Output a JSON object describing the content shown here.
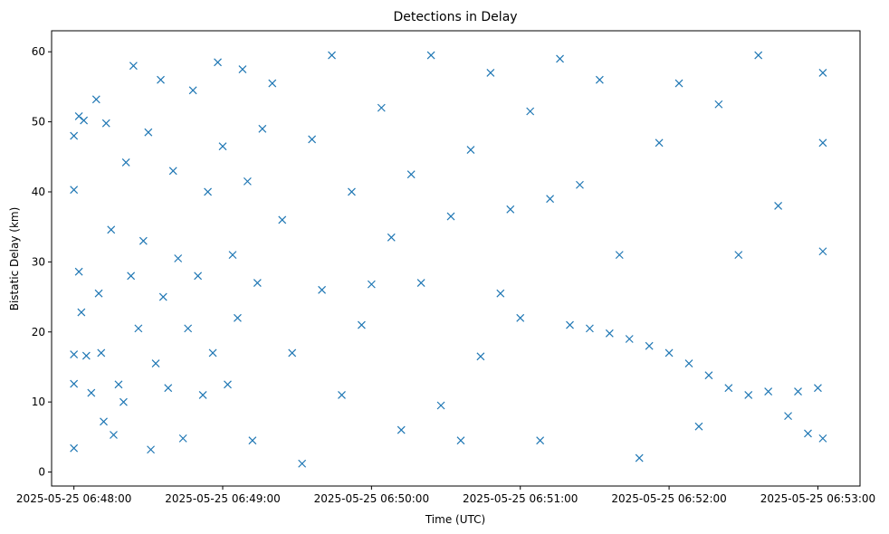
{
  "chart_data": {
    "type": "scatter",
    "title": "Detections in Delay",
    "xlabel": "Time (UTC)",
    "ylabel": "Bistatic Delay (km)",
    "x_ticks": [
      "2025-05-25 06:48:00",
      "2025-05-25 06:49:00",
      "2025-05-25 06:50:00",
      "2025-05-25 06:51:00",
      "2025-05-25 06:52:00",
      "2025-05-25 06:53:00"
    ],
    "y_ticks": [
      0,
      10,
      20,
      30,
      40,
      50,
      60
    ],
    "xlim": [
      "2025-05-25 06:47:51",
      "2025-05-25 06:53:17"
    ],
    "ylim": [
      -2,
      63
    ],
    "marker": "x",
    "color": "#1f77b4",
    "grid": false,
    "series": [
      {
        "points": [
          [
            "2025-05-25 06:48:00",
            48.0
          ],
          [
            "2025-05-25 06:48:00",
            40.3
          ],
          [
            "2025-05-25 06:48:00",
            16.8
          ],
          [
            "2025-05-25 06:48:00",
            12.6
          ],
          [
            "2025-05-25 06:48:00",
            3.4
          ],
          [
            "2025-05-25 06:48:02",
            50.8
          ],
          [
            "2025-05-25 06:48:02",
            28.6
          ],
          [
            "2025-05-25 06:48:03",
            22.8
          ],
          [
            "2025-05-25 06:48:04",
            50.2
          ],
          [
            "2025-05-25 06:48:05",
            16.6
          ],
          [
            "2025-05-25 06:48:07",
            11.3
          ],
          [
            "2025-05-25 06:48:09",
            53.2
          ],
          [
            "2025-05-25 06:48:10",
            25.5
          ],
          [
            "2025-05-25 06:48:11",
            17.0
          ],
          [
            "2025-05-25 06:48:12",
            7.2
          ],
          [
            "2025-05-25 06:48:13",
            49.8
          ],
          [
            "2025-05-25 06:48:15",
            34.6
          ],
          [
            "2025-05-25 06:48:16",
            5.3
          ],
          [
            "2025-05-25 06:48:18",
            12.5
          ],
          [
            "2025-05-25 06:48:20",
            10.0
          ],
          [
            "2025-05-25 06:48:21",
            44.2
          ],
          [
            "2025-05-25 06:48:23",
            28.0
          ],
          [
            "2025-05-25 06:48:24",
            58.0
          ],
          [
            "2025-05-25 06:48:26",
            20.5
          ],
          [
            "2025-05-25 06:48:28",
            33.0
          ],
          [
            "2025-05-25 06:48:30",
            48.5
          ],
          [
            "2025-05-25 06:48:31",
            3.2
          ],
          [
            "2025-05-25 06:48:33",
            15.5
          ],
          [
            "2025-05-25 06:48:35",
            56.0
          ],
          [
            "2025-05-25 06:48:36",
            25.0
          ],
          [
            "2025-05-25 06:48:38",
            12.0
          ],
          [
            "2025-05-25 06:48:40",
            43.0
          ],
          [
            "2025-05-25 06:48:42",
            30.5
          ],
          [
            "2025-05-25 06:48:44",
            4.8
          ],
          [
            "2025-05-25 06:48:46",
            20.5
          ],
          [
            "2025-05-25 06:48:48",
            54.5
          ],
          [
            "2025-05-25 06:48:50",
            28.0
          ],
          [
            "2025-05-25 06:48:52",
            11.0
          ],
          [
            "2025-05-25 06:48:54",
            40.0
          ],
          [
            "2025-05-25 06:48:56",
            17.0
          ],
          [
            "2025-05-25 06:48:58",
            58.5
          ],
          [
            "2025-05-25 06:49:00",
            46.5
          ],
          [
            "2025-05-25 06:49:02",
            12.5
          ],
          [
            "2025-05-25 06:49:04",
            31.0
          ],
          [
            "2025-05-25 06:49:06",
            22.0
          ],
          [
            "2025-05-25 06:49:08",
            57.5
          ],
          [
            "2025-05-25 06:49:10",
            41.5
          ],
          [
            "2025-05-25 06:49:12",
            4.5
          ],
          [
            "2025-05-25 06:49:14",
            27.0
          ],
          [
            "2025-05-25 06:49:16",
            49.0
          ],
          [
            "2025-05-25 06:49:20",
            55.5
          ],
          [
            "2025-05-25 06:49:24",
            36.0
          ],
          [
            "2025-05-25 06:49:28",
            17.0
          ],
          [
            "2025-05-25 06:49:32",
            1.2
          ],
          [
            "2025-05-25 06:49:36",
            47.5
          ],
          [
            "2025-05-25 06:49:40",
            26.0
          ],
          [
            "2025-05-25 06:49:44",
            59.5
          ],
          [
            "2025-05-25 06:49:48",
            11.0
          ],
          [
            "2025-05-25 06:49:52",
            40.0
          ],
          [
            "2025-05-25 06:49:56",
            21.0
          ],
          [
            "2025-05-25 06:50:00",
            26.8
          ],
          [
            "2025-05-25 06:50:04",
            52.0
          ],
          [
            "2025-05-25 06:50:08",
            33.5
          ],
          [
            "2025-05-25 06:50:12",
            6.0
          ],
          [
            "2025-05-25 06:50:16",
            42.5
          ],
          [
            "2025-05-25 06:50:20",
            27.0
          ],
          [
            "2025-05-25 06:50:24",
            59.5
          ],
          [
            "2025-05-25 06:50:28",
            9.5
          ],
          [
            "2025-05-25 06:50:32",
            36.5
          ],
          [
            "2025-05-25 06:50:36",
            4.5
          ],
          [
            "2025-05-25 06:50:40",
            46.0
          ],
          [
            "2025-05-25 06:50:44",
            16.5
          ],
          [
            "2025-05-25 06:50:48",
            57.0
          ],
          [
            "2025-05-25 06:50:52",
            25.5
          ],
          [
            "2025-05-25 06:50:56",
            37.5
          ],
          [
            "2025-05-25 06:51:00",
            22.0
          ],
          [
            "2025-05-25 06:51:04",
            51.5
          ],
          [
            "2025-05-25 06:51:08",
            4.5
          ],
          [
            "2025-05-25 06:51:12",
            39.0
          ],
          [
            "2025-05-25 06:51:16",
            59.0
          ],
          [
            "2025-05-25 06:51:20",
            21.0
          ],
          [
            "2025-05-25 06:51:24",
            41.0
          ],
          [
            "2025-05-25 06:51:28",
            20.5
          ],
          [
            "2025-05-25 06:51:32",
            56.0
          ],
          [
            "2025-05-25 06:51:36",
            19.8
          ],
          [
            "2025-05-25 06:51:40",
            31.0
          ],
          [
            "2025-05-25 06:51:44",
            19.0
          ],
          [
            "2025-05-25 06:51:48",
            2.0
          ],
          [
            "2025-05-25 06:51:52",
            18.0
          ],
          [
            "2025-05-25 06:51:56",
            47.0
          ],
          [
            "2025-05-25 06:52:00",
            17.0
          ],
          [
            "2025-05-25 06:52:04",
            55.5
          ],
          [
            "2025-05-25 06:52:08",
            15.5
          ],
          [
            "2025-05-25 06:52:12",
            6.5
          ],
          [
            "2025-05-25 06:52:16",
            13.8
          ],
          [
            "2025-05-25 06:52:20",
            52.5
          ],
          [
            "2025-05-25 06:52:24",
            12.0
          ],
          [
            "2025-05-25 06:52:28",
            31.0
          ],
          [
            "2025-05-25 06:52:32",
            11.0
          ],
          [
            "2025-05-25 06:52:36",
            59.5
          ],
          [
            "2025-05-25 06:52:40",
            11.5
          ],
          [
            "2025-05-25 06:52:44",
            38.0
          ],
          [
            "2025-05-25 06:52:48",
            8.0
          ],
          [
            "2025-05-25 06:52:52",
            11.5
          ],
          [
            "2025-05-25 06:52:56",
            5.5
          ],
          [
            "2025-05-25 06:53:00",
            12.0
          ],
          [
            "2025-05-25 06:53:02",
            57.0
          ],
          [
            "2025-05-25 06:53:02",
            47.0
          ],
          [
            "2025-05-25 06:53:02",
            31.5
          ],
          [
            "2025-05-25 06:53:02",
            4.8
          ]
        ]
      }
    ]
  }
}
